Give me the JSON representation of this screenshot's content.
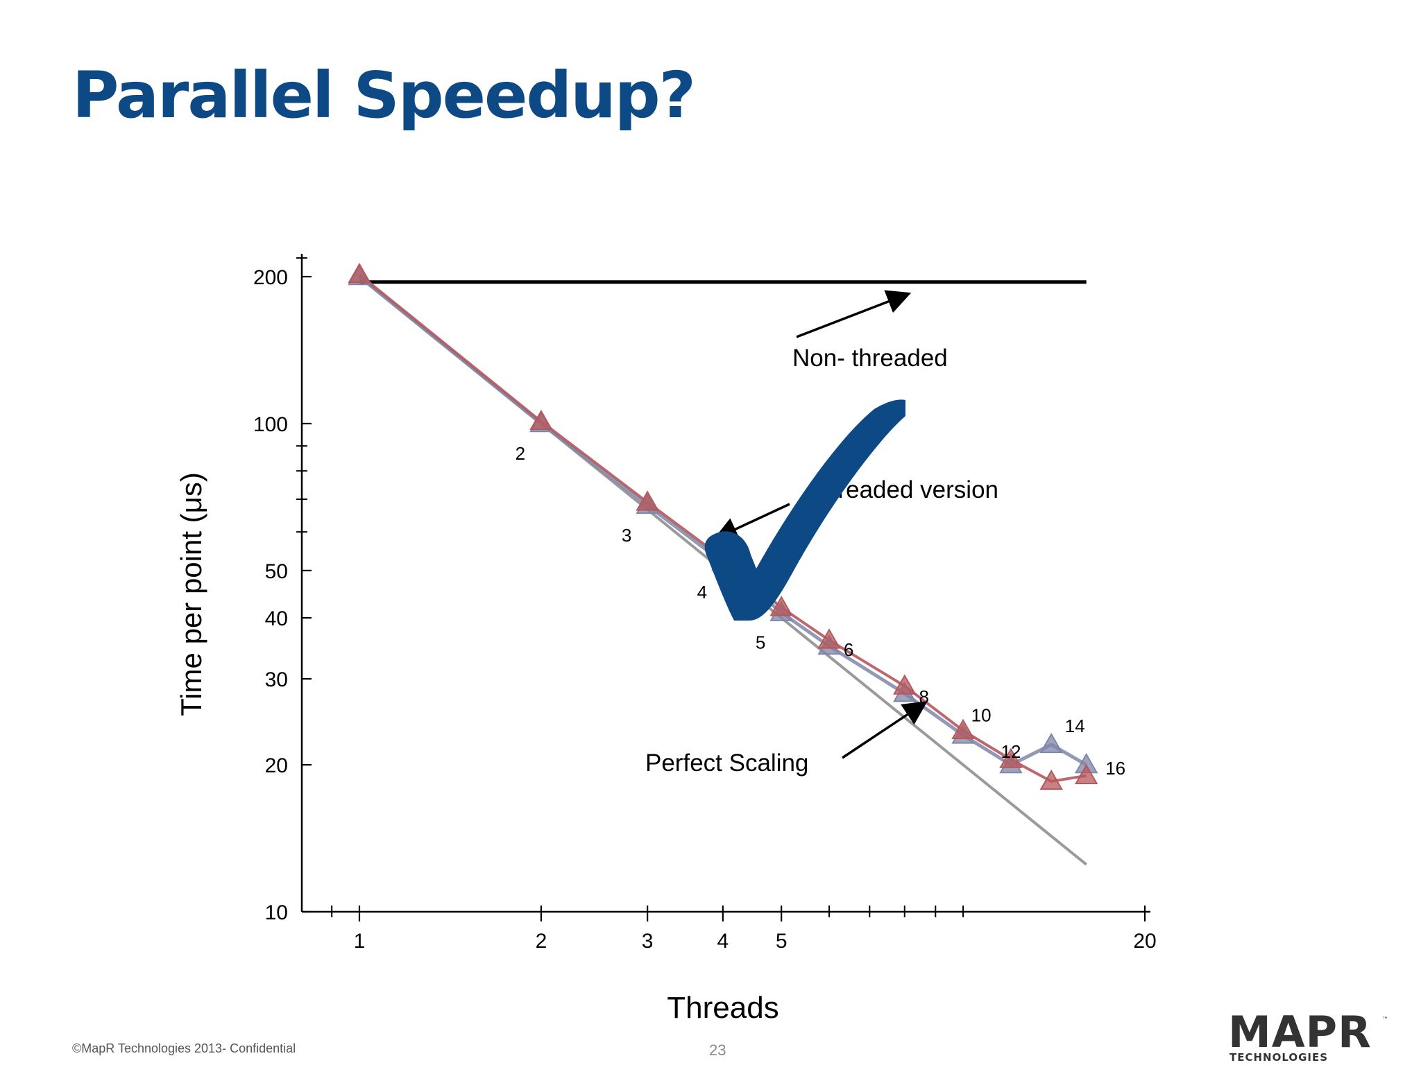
{
  "slide": {
    "title": "Parallel Speedup?",
    "footer": "©MapR Technologies 2013- Confidential",
    "page_number": "23",
    "logo": {
      "text": "MAPR",
      "subtext": "TECHNOLOGIES",
      "tm": "™"
    }
  },
  "colors": {
    "title": "#0d4a85",
    "checkmark": "#0d4a85",
    "red_series": "#b5585c",
    "blue_series": "#7f86a8",
    "perfect_line": "#9a9a9a",
    "baseline": "#000000"
  },
  "icons": {
    "check": "checkmark-icon"
  },
  "chart_data": {
    "type": "line",
    "xlabel": "Threads",
    "ylabel": "Time per point (μs)",
    "x_scale": "log",
    "y_scale": "log",
    "xlim": [
      0.85,
      20
    ],
    "ylim": [
      10,
      210
    ],
    "x_ticks": [
      1,
      2,
      3,
      4,
      5,
      20
    ],
    "x_minor_ticks": [
      0.9,
      6,
      7,
      8,
      9,
      10
    ],
    "y_ticks": [
      10,
      20,
      30,
      40,
      50,
      100,
      200
    ],
    "y_minor_ticks": [
      60,
      70,
      80,
      90
    ],
    "series": [
      {
        "points": [
          [
            1,
            200
          ],
          [
            2,
            100
          ],
          [
            3,
            68
          ],
          [
            4,
            52
          ],
          [
            5,
            41
          ],
          [
            6,
            35
          ],
          [
            8,
            28
          ],
          [
            10,
            23
          ],
          [
            12,
            20
          ],
          [
            14,
            22
          ],
          [
            16,
            20
          ]
        ]
      },
      {
        "points": [
          [
            1,
            202
          ],
          [
            2,
            101
          ],
          [
            3,
            69
          ],
          [
            4,
            53
          ],
          [
            5,
            42
          ],
          [
            6,
            36
          ],
          [
            8,
            29
          ],
          [
            10,
            23.5
          ],
          [
            12,
            20.5
          ],
          [
            14,
            18.5
          ],
          [
            16,
            19
          ]
        ]
      },
      {
        "points": [
          [
            1,
            200
          ],
          [
            16,
            12.5
          ]
        ]
      },
      {
        "points": [
          [
            1,
            195
          ],
          [
            16,
            195
          ]
        ]
      }
    ],
    "point_labels": [
      {
        "text": "2",
        "x": 2,
        "y": 100
      },
      {
        "text": "3",
        "x": 3,
        "y": 68
      },
      {
        "text": "4",
        "x": 4,
        "y": 52
      },
      {
        "text": "5",
        "x": 5,
        "y": 41
      },
      {
        "text": "6",
        "x": 6,
        "y": 35
      },
      {
        "text": "8",
        "x": 8,
        "y": 28
      },
      {
        "text": "10",
        "x": 10,
        "y": 23
      },
      {
        "text": "12",
        "x": 12,
        "y": 20
      },
      {
        "text": "14",
        "x": 14,
        "y": 22
      },
      {
        "text": "16",
        "x": 16,
        "y": 20
      }
    ],
    "annotations": [
      {
        "text": "Non- threaded",
        "arrow_to": [
          8,
          195
        ]
      },
      {
        "text": "hreaded version",
        "arrow_to": [
          3.7,
          60
        ]
      },
      {
        "text": "Perfect Scaling",
        "arrow_to": [
          10,
          26.5
        ]
      }
    ]
  }
}
